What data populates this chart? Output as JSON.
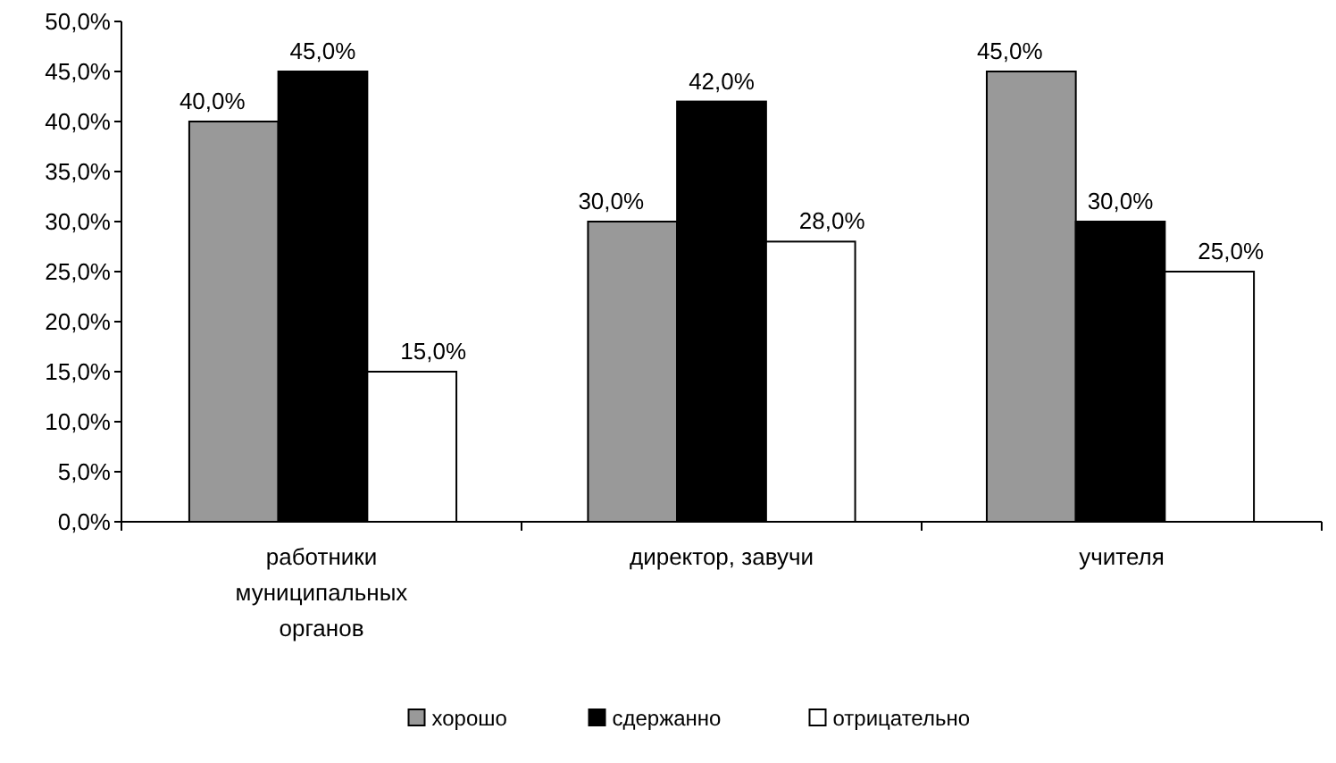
{
  "chart_data": {
    "type": "bar",
    "categories": [
      "работники муниципальных органов",
      "директор, завучи",
      "учителя"
    ],
    "series": [
      {
        "name": "хорошо",
        "color": "#999999",
        "values": [
          40,
          30,
          45
        ],
        "value_labels": [
          "40,0%",
          "30,0%",
          "45,0%"
        ]
      },
      {
        "name": "сдержанно",
        "color": "#000000",
        "values": [
          45,
          42,
          30
        ],
        "value_labels": [
          "45,0%",
          "42,0%",
          "30,0%"
        ]
      },
      {
        "name": "отрицательно",
        "color": "#ffffff",
        "values": [
          15,
          28,
          25
        ],
        "value_labels": [
          "15,0%",
          "28,0%",
          "25,0%"
        ]
      }
    ],
    "ylim": [
      0,
      50
    ],
    "yticks": [
      {
        "value": 0,
        "label": "0,0%"
      },
      {
        "value": 5,
        "label": "5,0%"
      },
      {
        "value": 10,
        "label": "10,0%"
      },
      {
        "value": 15,
        "label": "15,0%"
      },
      {
        "value": 20,
        "label": "20,0%"
      },
      {
        "value": 25,
        "label": "25,0%"
      },
      {
        "value": 30,
        "label": "30,0%"
      },
      {
        "value": 35,
        "label": "35,0%"
      },
      {
        "value": 40,
        "label": "40,0%"
      },
      {
        "value": 45,
        "label": "45,0%"
      },
      {
        "value": 50,
        "label": "50,0%"
      }
    ],
    "grid": false,
    "legend": "bottom"
  }
}
